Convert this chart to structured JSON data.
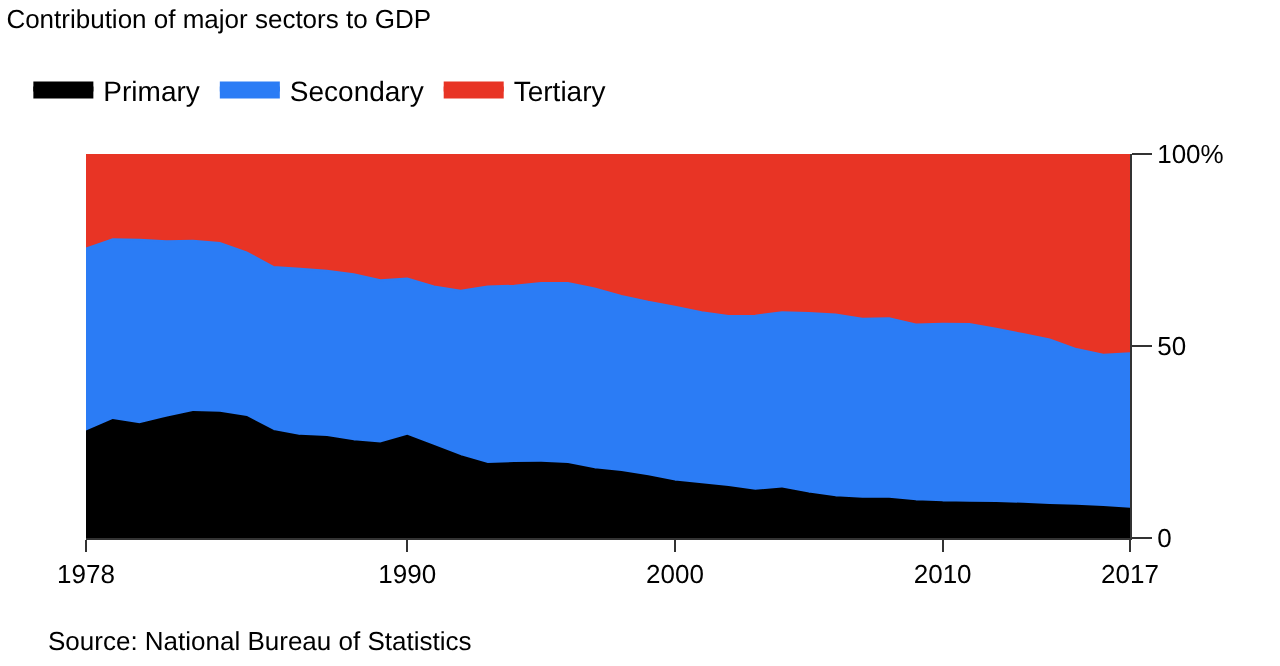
{
  "chart_data": {
    "type": "area",
    "stacked": true,
    "title": "Contribution of major sectors to GDP",
    "annotations": [
      "Source: National Bureau of Statistics"
    ],
    "x": [
      1978,
      1979,
      1980,
      1981,
      1982,
      1983,
      1984,
      1985,
      1986,
      1987,
      1988,
      1989,
      1990,
      1991,
      1992,
      1993,
      1994,
      1995,
      1996,
      1997,
      1998,
      1999,
      2000,
      2001,
      2002,
      2003,
      2004,
      2005,
      2006,
      2007,
      2008,
      2009,
      2010,
      2011,
      2012,
      2013,
      2014,
      2015,
      2016,
      2017
    ],
    "series": [
      {
        "name": "Primary",
        "color": "#000000",
        "values": [
          27.7,
          30.7,
          29.6,
          31.3,
          32.8,
          32.6,
          31.5,
          27.9,
          26.6,
          26.3,
          25.2,
          24.6,
          26.6,
          24.0,
          21.3,
          19.3,
          19.5,
          19.6,
          19.3,
          17.9,
          17.2,
          16.1,
          14.7,
          14.0,
          13.3,
          12.3,
          12.9,
          11.6,
          10.6,
          10.2,
          10.2,
          9.6,
          9.3,
          9.2,
          9.1,
          8.9,
          8.6,
          8.4,
          8.1,
          7.6
        ]
      },
      {
        "name": "Secondary",
        "color": "#2b7cf5",
        "values": [
          47.7,
          47.1,
          48.1,
          46.0,
          44.6,
          44.2,
          42.9,
          42.7,
          43.5,
          43.3,
          43.5,
          42.5,
          41.0,
          41.5,
          43.1,
          46.2,
          46.2,
          46.8,
          47.1,
          47.1,
          45.8,
          45.4,
          45.5,
          44.8,
          44.5,
          45.6,
          45.9,
          47.0,
          47.6,
          46.9,
          47.0,
          46.0,
          46.5,
          46.5,
          45.4,
          44.2,
          43.1,
          40.8,
          39.6,
          40.5
        ]
      },
      {
        "name": "Tertiary",
        "color": "#e83425",
        "values": [
          24.6,
          22.2,
          22.3,
          22.7,
          22.6,
          23.2,
          25.6,
          29.4,
          29.9,
          30.4,
          31.3,
          32.9,
          32.4,
          34.5,
          35.6,
          34.5,
          34.3,
          33.6,
          33.6,
          35.0,
          37.0,
          38.5,
          39.8,
          41.2,
          42.2,
          42.1,
          41.2,
          41.4,
          41.8,
          42.9,
          42.8,
          44.4,
          44.2,
          44.3,
          45.5,
          46.9,
          48.3,
          50.8,
          52.3,
          51.9
        ]
      }
    ],
    "xlim": [
      1978,
      2017
    ],
    "xticks": [
      1978,
      1990,
      2000,
      2010,
      2017
    ],
    "ylim": [
      0,
      100
    ],
    "yticks": [
      0,
      50,
      {
        "value": 100,
        "label": "100%"
      }
    ],
    "legend": "top left"
  }
}
